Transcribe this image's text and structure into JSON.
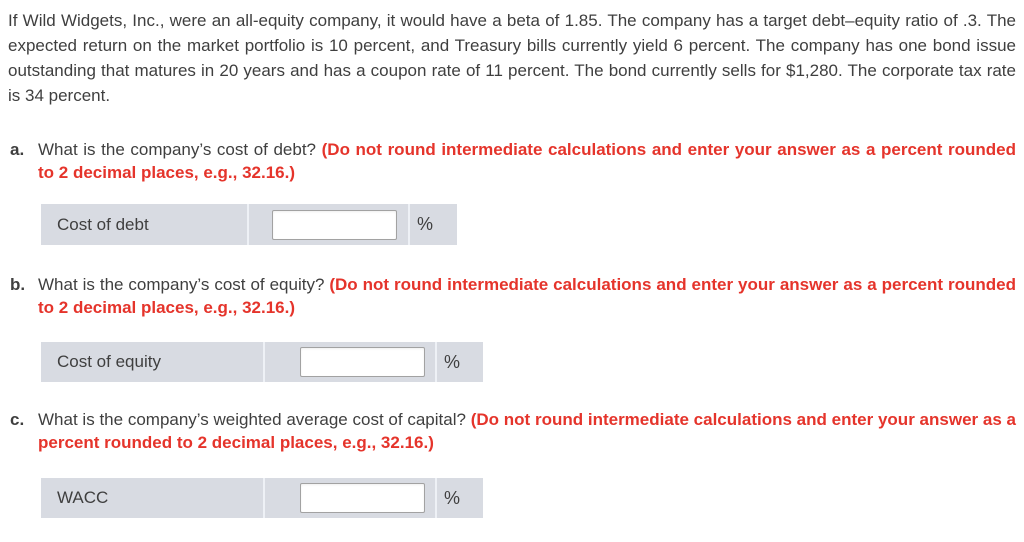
{
  "colors": {
    "page_background": "#ffffff",
    "body_text": "#3f3f3f",
    "instruction_red": "#e5342b",
    "answer_row_background": "#d8dbe2",
    "cell_divider": "#eef1f6",
    "input_border": "#a2a2a2"
  },
  "problem": {
    "intro": "If Wild Widgets, Inc., were an all-equity company, it would have a beta of 1.85. The company has a target debt–equity ratio of .3. The expected return on the market portfolio is 10 percent, and Treasury bills currently yield 6 percent. The company has one bond issue outstanding that matures in 20 years and has a coupon rate of 11 percent. The bond currently sells for $1,280. The corporate tax rate is 34 percent."
  },
  "questions": [
    {
      "letter": "a.",
      "text": "What is the company’s cost of debt?",
      "instruction": "(Do not round intermediate calculations and enter your answer as a percent rounded to 2 decimal places, e.g., 32.16.)",
      "answer_label": "Cost of debt",
      "input_value": "",
      "unit": "%"
    },
    {
      "letter": "b.",
      "text": "What is the company’s cost of equity?",
      "instruction": "(Do not round intermediate calculations and enter your answer as a percent rounded to 2 decimal places, e.g., 32.16.)",
      "answer_label": "Cost of equity",
      "input_value": "",
      "unit": "%"
    },
    {
      "letter": "c.",
      "text": "What is the company’s weighted average cost of capital?",
      "instruction": "(Do not round intermediate calculations and enter your answer as a percent rounded to 2 decimal places, e.g., 32.16.)",
      "answer_label": "WACC",
      "input_value": "",
      "unit": "%"
    }
  ]
}
